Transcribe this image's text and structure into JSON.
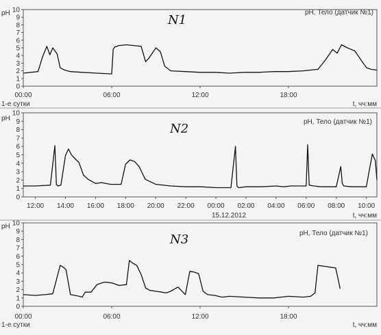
{
  "chart_data": [
    {
      "type": "line",
      "annotation": "N1",
      "title": "pH, Тело (датчик №1)",
      "ylabel": "pH",
      "ylim": [
        0,
        10
      ],
      "yticks": [
        "0",
        "1",
        "2",
        "3",
        "4",
        "5",
        "6",
        "7",
        "8",
        "9",
        "10"
      ],
      "xlabel": "t, чч:мм",
      "x_sub_label": "1-е сутки",
      "xticks": [
        "00:00",
        "06:00",
        "12:00",
        "18:00"
      ],
      "x_tick_hours": [
        0,
        6,
        12,
        18
      ],
      "x_range_hours": [
        0,
        24
      ],
      "series": [
        {
          "x_hours": [
            0.0,
            1.0,
            1.3,
            1.6,
            1.8,
            2.0,
            2.3,
            2.5,
            2.8,
            3.2,
            4.0,
            5.0,
            6.0,
            6.1,
            6.2,
            6.5,
            7.0,
            7.5,
            8.0,
            8.3,
            8.5,
            9.0,
            9.3,
            9.6,
            10.0,
            11.0,
            12.0,
            13.0,
            14.0,
            15.0,
            16.0,
            17.0,
            18.0,
            19.0,
            20.0,
            20.5,
            21.0,
            21.3,
            21.6,
            22.0,
            22.5,
            23.0,
            23.3,
            23.6,
            24.0
          ],
          "y": [
            1.7,
            1.9,
            3.8,
            5.2,
            4.1,
            5.0,
            4.2,
            2.4,
            2.1,
            1.9,
            1.8,
            1.7,
            1.6,
            4.8,
            5.1,
            5.3,
            5.4,
            5.3,
            5.2,
            3.2,
            3.6,
            5.0,
            4.5,
            2.6,
            2.0,
            1.9,
            1.8,
            1.8,
            1.7,
            1.8,
            1.8,
            1.9,
            1.9,
            2.0,
            2.2,
            3.4,
            4.8,
            4.3,
            5.4,
            5.0,
            4.6,
            3.2,
            2.4,
            2.2,
            2.1
          ]
        }
      ]
    },
    {
      "type": "line",
      "annotation": "N2",
      "title": "pH, Тело (датчик №1)",
      "ylabel": "pH",
      "ylim": [
        0,
        10
      ],
      "yticks": [
        "0",
        "1",
        "2",
        "3",
        "4",
        "5",
        "6",
        "7",
        "8",
        "9",
        "10"
      ],
      "xlabel": "t, чч:мм",
      "x_sub_label": "15.12.2012",
      "xticks": [
        "12:00",
        "14:00",
        "16:00",
        "18:00",
        "20:00",
        "22:00",
        "00:00",
        "02:00",
        "04:00",
        "06:00",
        "08:00",
        "10:00"
      ],
      "x_tick_hours": [
        12,
        14,
        16,
        18,
        20,
        22,
        24,
        26,
        28,
        30,
        32,
        34
      ],
      "x_range_hours": [
        11.2,
        34.7
      ],
      "series": [
        {
          "x_hours": [
            11.2,
            12.0,
            13.0,
            13.3,
            13.4,
            13.5,
            13.7,
            14.0,
            14.2,
            14.4,
            14.6,
            14.9,
            15.2,
            15.5,
            16.0,
            16.4,
            17.0,
            17.7,
            18.0,
            18.3,
            18.6,
            18.9,
            19.3,
            20.0,
            21.0,
            22.0,
            23.0,
            24.0,
            25.0,
            25.3,
            25.4,
            25.5,
            26.0,
            27.0,
            28.0,
            28.5,
            29.0,
            29.5,
            30.0,
            30.1,
            30.2,
            30.5,
            31.0,
            32.0,
            32.3,
            32.4,
            32.5,
            33.0,
            34.0,
            34.2,
            34.4,
            34.6,
            34.7
          ],
          "y": [
            1.3,
            1.3,
            1.4,
            6.1,
            1.5,
            1.3,
            1.4,
            4.9,
            5.7,
            5.0,
            4.6,
            4.1,
            2.6,
            2.1,
            1.6,
            1.7,
            1.5,
            1.5,
            3.9,
            4.4,
            4.2,
            3.6,
            2.1,
            1.5,
            1.3,
            1.2,
            1.2,
            1.1,
            1.1,
            6.0,
            1.3,
            1.1,
            1.2,
            1.2,
            1.3,
            1.2,
            1.3,
            1.3,
            1.3,
            6.2,
            1.4,
            1.3,
            1.2,
            1.2,
            3.6,
            1.6,
            1.3,
            1.2,
            1.2,
            3.2,
            5.1,
            4.3,
            2.0
          ]
        }
      ]
    },
    {
      "type": "line",
      "annotation": "N3",
      "title": "pH, Тело (датчик №1)",
      "ylabel": "pH",
      "ylim": [
        0,
        10
      ],
      "yticks": [
        "0",
        "1",
        "2",
        "3",
        "4",
        "5",
        "6",
        "7",
        "8",
        "9",
        "10"
      ],
      "xlabel": "t, чч:мм",
      "x_sub_label": "1-е сутки",
      "xticks": [
        "00:00",
        "06:00",
        "12:00",
        "18:00"
      ],
      "x_tick_hours": [
        0,
        6,
        12,
        18
      ],
      "x_range_hours": [
        0,
        24
      ],
      "series": [
        {
          "x_hours": [
            0.0,
            0.8,
            1.5,
            2.0,
            2.5,
            2.7,
            2.9,
            3.2,
            3.5,
            3.8,
            4.0,
            4.2,
            4.6,
            5.0,
            5.5,
            6.0,
            6.5,
            7.0,
            7.2,
            7.4,
            7.7,
            8.0,
            8.3,
            8.6,
            9.0,
            9.4,
            9.7,
            10.0,
            10.5,
            11.0,
            11.3,
            11.6,
            11.9,
            12.2,
            12.5,
            13.0,
            13.5,
            14.0,
            15.0,
            16.0,
            17.0,
            18.0,
            19.0,
            19.5,
            19.8,
            20.0,
            20.4,
            20.8,
            21.2,
            21.4,
            21.5
          ],
          "y": [
            1.4,
            1.3,
            1.4,
            1.5,
            4.9,
            4.7,
            4.4,
            1.4,
            1.3,
            1.2,
            1.1,
            1.7,
            1.7,
            2.6,
            2.9,
            2.8,
            2.5,
            2.6,
            5.5,
            5.2,
            4.9,
            3.8,
            2.2,
            1.9,
            1.8,
            1.7,
            1.6,
            1.8,
            2.3,
            1.4,
            4.2,
            4.1,
            3.9,
            1.8,
            1.4,
            1.3,
            1.1,
            1.2,
            1.1,
            1.0,
            1.0,
            1.2,
            1.1,
            1.2,
            1.6,
            4.9,
            4.8,
            4.7,
            4.6,
            3.0,
            2.1
          ]
        }
      ]
    }
  ]
}
